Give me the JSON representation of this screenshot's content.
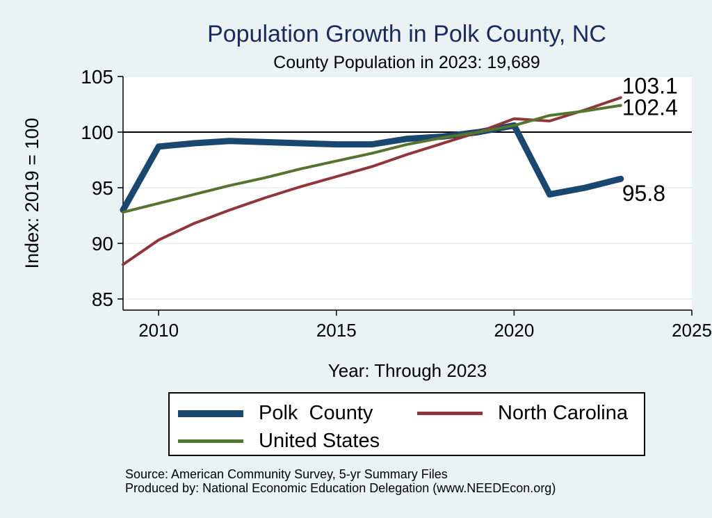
{
  "chart_data": {
    "type": "line",
    "title": "Population Growth in Polk County, NC",
    "subtitle": "County Population in 2023: 19,689",
    "xlabel": "Year: Through 2023",
    "ylabel": "Index: 2019 = 100",
    "xlim": [
      2009,
      2025
    ],
    "ylim": [
      84,
      105
    ],
    "xticks": [
      2010,
      2015,
      2020,
      2025
    ],
    "yticks": [
      85,
      90,
      95,
      100,
      105
    ],
    "reference_line": 100,
    "grid": true,
    "legend_position": "bottom",
    "series": [
      {
        "name": "Polk  County",
        "color": "#1a476f",
        "x": [
          2009,
          2010,
          2011,
          2012,
          2013,
          2014,
          2015,
          2016,
          2017,
          2018,
          2019,
          2020,
          2021,
          2022,
          2023
        ],
        "values": [
          93.0,
          98.7,
          99.0,
          99.2,
          99.1,
          99.0,
          98.9,
          98.9,
          99.4,
          99.6,
          100.0,
          100.6,
          94.4,
          95.0,
          95.8
        ],
        "end_label": "95.8"
      },
      {
        "name": "North Carolina",
        "color": "#90353b",
        "x": [
          2009,
          2010,
          2011,
          2012,
          2013,
          2014,
          2015,
          2016,
          2017,
          2018,
          2019,
          2020,
          2021,
          2022,
          2023
        ],
        "values": [
          88.1,
          90.3,
          91.8,
          93.0,
          94.1,
          95.1,
          96.0,
          96.9,
          98.0,
          99.0,
          100.0,
          101.2,
          101.0,
          102.0,
          103.1
        ],
        "end_label": "103.1"
      },
      {
        "name": "United States",
        "color": "#55752f",
        "x": [
          2009,
          2010,
          2011,
          2012,
          2013,
          2014,
          2015,
          2016,
          2017,
          2018,
          2019,
          2020,
          2021,
          2022,
          2023
        ],
        "values": [
          92.8,
          93.6,
          94.4,
          95.2,
          95.9,
          96.7,
          97.4,
          98.1,
          98.9,
          99.5,
          100.0,
          100.6,
          101.5,
          101.9,
          102.4
        ],
        "end_label": "102.4"
      }
    ]
  },
  "notes": {
    "source": "Source: American Community Survey, 5-yr Summary Files",
    "producer": "Produced by: National Economic Education Delegation (www.NEEDEcon.org)"
  }
}
